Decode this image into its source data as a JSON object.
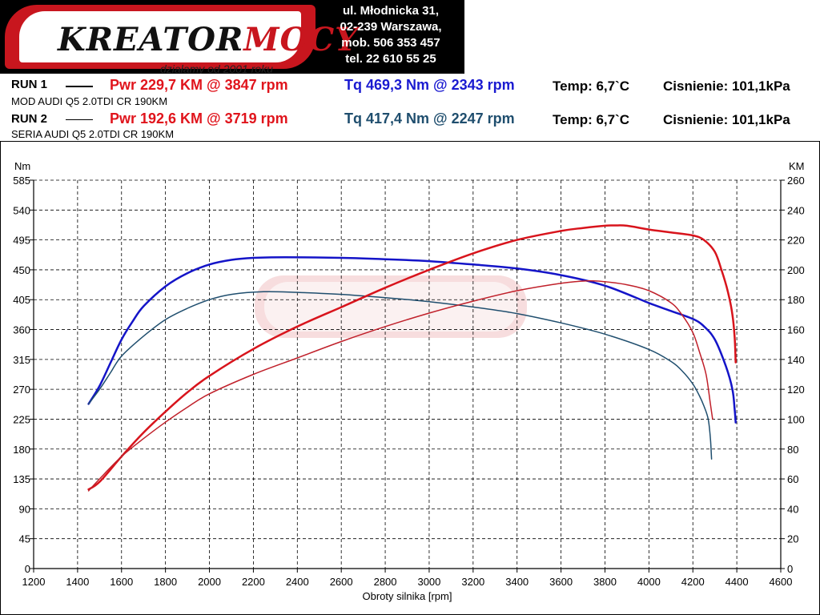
{
  "header": {
    "logo_text_a": "KREATOR",
    "logo_text_b": "MOCY",
    "logo_tagline": "działamy od 2001 roku",
    "address": [
      "ul. Młodnicka 31,",
      "02-239  Warszawa,",
      "mob.  506 353 457",
      "tel.  22 610 55 25"
    ]
  },
  "runs": [
    {
      "label": "RUN 1",
      "pwr": "Pwr  229,7 KM @ 3847 rpm",
      "tq": "Tq 469,3 Nm @ 2343 rpm",
      "temp": "Temp: 6,7`C",
      "pressure": "Cisnienie: 101,1kPa",
      "desc": "MOD AUDI Q5 2.0TDI CR 190KM"
    },
    {
      "label": "RUN 2",
      "pwr": "Pwr  192,6 KM @ 3719 rpm",
      "tq": "Tq 417,4 Nm @ 2247 rpm",
      "temp": "Temp: 6,7`C",
      "pressure": "Cisnienie: 101,1kPa",
      "desc": "SERIA AUDI Q5 2.0TDI CR 190KM"
    }
  ],
  "colors": {
    "run1_power": "#d8141c",
    "run2_power": "#c0202a",
    "run1_torque": "#1414c8",
    "run2_torque": "#1f4e6e"
  },
  "chart_data": {
    "type": "line",
    "xlabel": "Obroty silnika [rpm]",
    "ylabel_left": "Nm",
    "ylabel_right": "KM",
    "xlim": [
      1200,
      4600
    ],
    "ylim_left": [
      0,
      585
    ],
    "ylim_right": [
      0,
      260
    ],
    "x_ticks": [
      1200,
      1400,
      1600,
      1800,
      2000,
      2200,
      2400,
      2600,
      2800,
      3000,
      3200,
      3400,
      3600,
      3800,
      4000,
      4200,
      4400,
      4600
    ],
    "y_left_ticks": [
      0,
      45,
      90,
      135,
      180,
      225,
      270,
      315,
      360,
      405,
      450,
      495,
      540,
      585
    ],
    "y_right_ticks": [
      0,
      20,
      40,
      60,
      80,
      100,
      120,
      140,
      160,
      180,
      200,
      220,
      240,
      260
    ],
    "grid": true,
    "series": [
      {
        "key": "run1_torque",
        "axis": "left",
        "color": "#1414c8",
        "width": 2.5,
        "x": [
          1450,
          1500,
          1550,
          1600,
          1650,
          1700,
          1800,
          1900,
          2000,
          2100,
          2200,
          2343,
          2600,
          2800,
          3000,
          3200,
          3400,
          3600,
          3800,
          4000,
          4100,
          4200,
          4250,
          4300,
          4350,
          4380,
          4390,
          4395
        ],
        "y": [
          248,
          275,
          310,
          345,
          372,
          395,
          425,
          445,
          458,
          465,
          468,
          469,
          468,
          466,
          463,
          458,
          452,
          442,
          426,
          400,
          388,
          376,
          365,
          345,
          305,
          270,
          240,
          220
        ]
      },
      {
        "key": "run2_torque",
        "axis": "left",
        "color": "#1f4e6e",
        "width": 1.5,
        "x": [
          1450,
          1500,
          1550,
          1600,
          1700,
          1800,
          1900,
          2000,
          2100,
          2247,
          2400,
          2600,
          2800,
          3000,
          3200,
          3400,
          3600,
          3800,
          4000,
          4100,
          4150,
          4200,
          4230,
          4250,
          4270,
          4280,
          4285
        ],
        "y": [
          248,
          270,
          295,
          320,
          350,
          375,
          392,
          405,
          413,
          417,
          416,
          413,
          408,
          402,
          394,
          384,
          370,
          353,
          330,
          312,
          298,
          278,
          260,
          245,
          225,
          195,
          165
        ]
      },
      {
        "key": "run1_power",
        "axis": "right",
        "color": "#d8141c",
        "width": 2.5,
        "x": [
          1450,
          1500,
          1600,
          1700,
          1800,
          1900,
          2000,
          2200,
          2400,
          2600,
          2800,
          3000,
          3200,
          3400,
          3600,
          3700,
          3800,
          3847,
          3900,
          4000,
          4100,
          4200,
          4250,
          4300,
          4330,
          4360,
          4380,
          4390,
          4395
        ],
        "y": [
          53,
          58,
          75,
          91,
          105,
          118,
          129,
          147,
          162,
          175,
          188,
          200,
          211,
          220,
          226,
          228,
          229.5,
          229.7,
          229.5,
          227,
          225,
          223,
          220,
          212,
          200,
          185,
          170,
          155,
          138
        ]
      },
      {
        "key": "run2_power",
        "axis": "right",
        "color": "#c0202a",
        "width": 1.5,
        "x": [
          1450,
          1500,
          1600,
          1700,
          1800,
          1900,
          2000,
          2200,
          2400,
          2600,
          2800,
          3000,
          3200,
          3400,
          3600,
          3719,
          3800,
          3900,
          4000,
          4100,
          4150,
          4200,
          4230,
          4260,
          4280,
          4290
        ],
        "y": [
          52,
          60,
          75,
          87,
          98,
          108,
          117,
          130,
          141,
          152,
          162,
          171,
          179,
          186,
          191,
          192.6,
          192,
          190,
          186,
          178,
          170,
          158,
          145,
          130,
          110,
          100
        ]
      }
    ]
  }
}
